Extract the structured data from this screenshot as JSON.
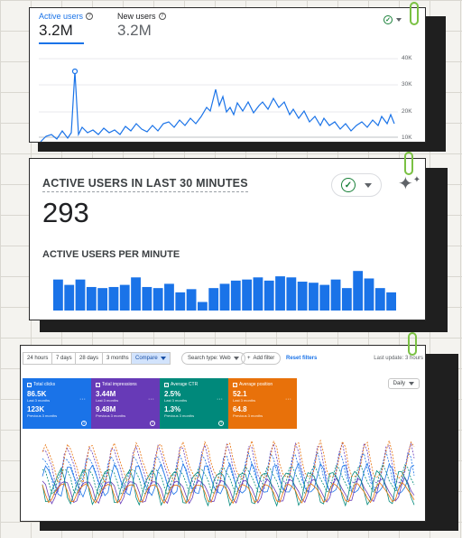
{
  "card1": {
    "metrics": [
      {
        "label": "Active users",
        "value": "3.2M",
        "active": true
      },
      {
        "label": "New users",
        "value": "3.2M",
        "active": false
      }
    ],
    "y_labels": [
      "40K",
      "30K",
      "20K",
      "10K"
    ],
    "colors": {
      "accent": "#1a73e8",
      "check": "#188038"
    }
  },
  "card2": {
    "title": "ACTIVE USERS IN LAST 30 MINUTES",
    "count": "293",
    "subtitle": "ACTIVE USERS PER MINUTE",
    "bar_values": [
      29,
      24,
      29,
      22,
      21,
      22,
      24,
      31,
      22,
      21,
      25,
      17,
      20,
      8,
      21,
      25,
      28,
      29,
      31,
      28,
      32,
      31,
      27,
      26,
      24,
      29,
      21,
      37,
      30,
      21,
      17
    ]
  },
  "card3": {
    "ranges": [
      "24 hours",
      "7 days",
      "28 days",
      "3 months"
    ],
    "compare_label": "Compare",
    "search_type_label": "Search type: Web",
    "add_filter_label": "Add filter",
    "reset_label": "Reset filters",
    "last_update": "Last update: 3 hours",
    "granularity": "Daily",
    "metric_cards": [
      {
        "title": "Total clicks",
        "value": "86.5K",
        "sub": "Last 3 months",
        "value2": "123K",
        "sub2": "Previous 3 months",
        "color": "#1a73e8"
      },
      {
        "title": "Total impressions",
        "value": "3.44M",
        "sub": "Last 3 months",
        "value2": "9.48M",
        "sub2": "Previous 3 months",
        "color": "#673ab7"
      },
      {
        "title": "Average CTR",
        "value": "2.5%",
        "sub": "Last 3 months",
        "value2": "1.3%",
        "sub2": "Previous 3 months",
        "color": "#00897b"
      },
      {
        "title": "Average position",
        "value": "52.1",
        "sub": "Last 3 months",
        "value2": "64.8",
        "sub2": "Previous 3 months",
        "color": "#e8710a"
      }
    ]
  }
}
